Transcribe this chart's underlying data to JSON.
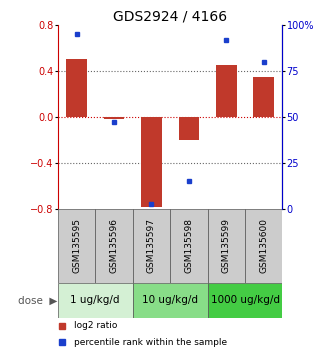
{
  "title": "GDS2924 / 4166",
  "samples": [
    "GSM135595",
    "GSM135596",
    "GSM135597",
    "GSM135598",
    "GSM135599",
    "GSM135600"
  ],
  "log2_ratio": [
    0.5,
    -0.02,
    -0.78,
    -0.2,
    0.45,
    0.35
  ],
  "percentile": [
    95,
    47,
    3,
    15,
    92,
    80
  ],
  "ylim_left": [
    -0.8,
    0.8
  ],
  "ylim_right": [
    0,
    100
  ],
  "left_ticks": [
    -0.8,
    -0.4,
    0.0,
    0.4,
    0.8
  ],
  "right_ticks": [
    0,
    25,
    50,
    75,
    100
  ],
  "right_tick_labels": [
    "0",
    "25",
    "50",
    "75",
    "100%"
  ],
  "dotted_lines_gray": [
    -0.4,
    0.4
  ],
  "dotted_line_red": 0.0,
  "bar_color": "#C0392B",
  "dot_color": "#1A3FCC",
  "bar_width": 0.55,
  "dose_groups": [
    {
      "label": "1 ug/kg/d",
      "samples": [
        0,
        1
      ],
      "color": "#d4f0d4"
    },
    {
      "label": "10 ug/kg/d",
      "samples": [
        2,
        3
      ],
      "color": "#88dd88"
    },
    {
      "label": "1000 ug/kg/d",
      "samples": [
        4,
        5
      ],
      "color": "#44cc44"
    }
  ],
  "dose_label": "dose",
  "legend_red": "log2 ratio",
  "legend_blue": "percentile rank within the sample",
  "left_axis_color": "#CC0000",
  "right_axis_color": "#0000CC",
  "title_fontsize": 10,
  "tick_fontsize": 7,
  "sample_fontsize": 6.5,
  "dose_fontsize": 7.5
}
